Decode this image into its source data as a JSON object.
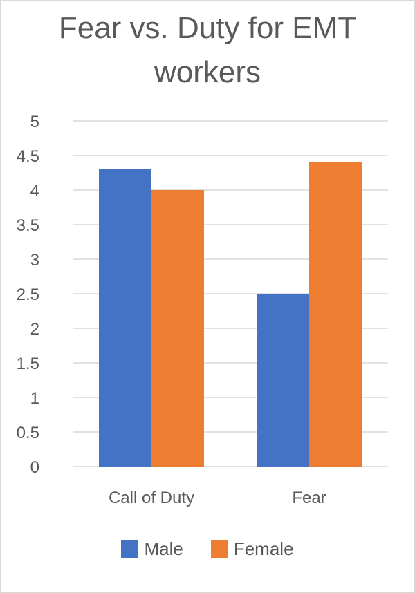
{
  "chart_data": {
    "type": "bar",
    "title": "Fear vs. Duty for EMT workers",
    "categories": [
      "Call of Duty",
      "Fear"
    ],
    "series": [
      {
        "name": "Male",
        "values": [
          4.3,
          2.5
        ],
        "color": "#4472C4"
      },
      {
        "name": "Female",
        "values": [
          4.0,
          4.4
        ],
        "color": "#ED7D31"
      }
    ],
    "ylim": [
      0,
      5
    ],
    "yticks": [
      0,
      0.5,
      1,
      1.5,
      2,
      2.5,
      3,
      3.5,
      4,
      4.5,
      5
    ],
    "ytick_labels": [
      "0",
      "0.5",
      "1",
      "1.5",
      "2",
      "2.5",
      "3",
      "3.5",
      "4",
      "4.5",
      "5"
    ],
    "grid": true,
    "legend": "bottom",
    "xlabel": "",
    "ylabel": ""
  }
}
